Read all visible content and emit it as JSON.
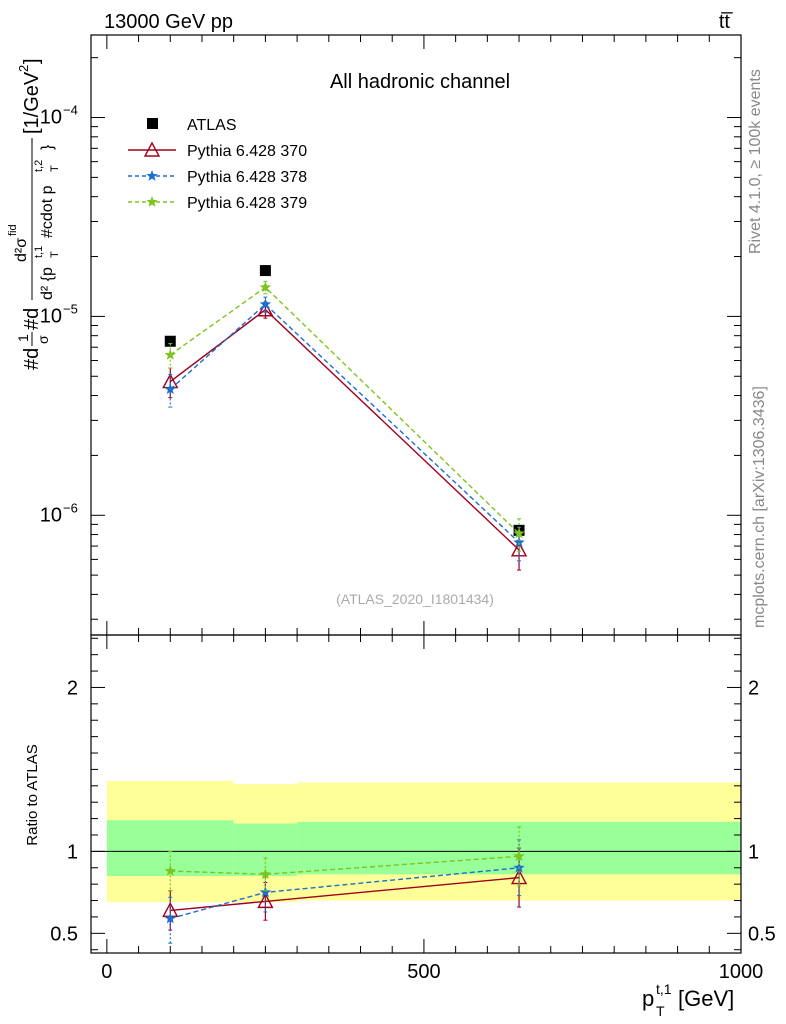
{
  "header": {
    "left": "13000 GeV pp",
    "right": "tt̅"
  },
  "side_labels": {
    "rivet": "Rivet 4.1.0, ≥ 100k events",
    "mcplots": "mcplots.cern.ch [arXiv:1306.3436]"
  },
  "chart_data": [
    {
      "type": "line",
      "panel": "main",
      "title": "All hadronic channel",
      "watermark": "(ATLAS_2020_I1801434)",
      "ylabel": "#d¹/σ#d d²σᶠᶦᵈ / d²{p_T^{t,1} #cdot p_T^{t,2}} [1/GeV²]",
      "ylabel_parts": {
        "prefix": "#d",
        "frac_num": "1",
        "frac_den": "σ",
        "mid": "#d",
        "num": "d²σ",
        "num_sup": "fid",
        "den_a": "d² {p",
        "den_sub": "T",
        "den_sup": "t,1",
        "den_b": "#cdot p",
        "den_sub2": "T",
        "den_sup2": "t,2",
        "den_c": "}",
        "unit": "[1/GeV",
        "unit_sup": "2",
        "unit_end": "]"
      },
      "yscale": "log",
      "ylim": [
        2.5e-07,
        0.00026
      ],
      "xlim": [
        -25,
        1000
      ],
      "yticks": [
        {
          "value": 1e-06,
          "base": "10",
          "exp": "−6"
        },
        {
          "value": 1e-05,
          "base": "10",
          "exp": "−5"
        },
        {
          "value": 0.0001,
          "base": "10",
          "exp": "−4"
        }
      ],
      "legend_position": "top-left",
      "series": [
        {
          "name": "ATLAS",
          "color": "#000000",
          "marker": "square",
          "style": "none",
          "x": [
            100,
            250,
            650
          ],
          "y": [
            7.5e-06,
            1.7e-05,
            8.4e-07
          ]
        },
        {
          "name": "Pythia 6.428 370",
          "color": "#a0001e",
          "marker": "triangle",
          "style": "solid",
          "x": [
            100,
            250,
            650
          ],
          "y": [
            4.7e-06,
            1.08e-05,
            6.7e-07
          ],
          "err_lo": [
            3.9e-06,
            9.8e-06,
            5.3e-07
          ],
          "err_hi": [
            5.5e-06,
            1.18e-05,
            8.1e-07
          ]
        },
        {
          "name": "Pythia 6.428 378",
          "color": "#1a6fd1",
          "marker": "star",
          "style": "dashed",
          "x": [
            100,
            250,
            650
          ],
          "y": [
            4.3e-06,
            1.15e-05,
            7.3e-07
          ],
          "err_lo": [
            3.5e-06,
            1.05e-05,
            5.9e-07
          ],
          "err_hi": [
            5.1e-06,
            1.25e-05,
            8.7e-07
          ]
        },
        {
          "name": "Pythia 6.428 379",
          "color": "#7cc51e",
          "marker": "star",
          "style": "dashed",
          "x": [
            100,
            250,
            650
          ],
          "y": [
            6.4e-06,
            1.4e-05,
            8.1e-07
          ],
          "err_lo": [
            5.5e-06,
            1.3e-05,
            6.6e-07
          ],
          "err_hi": [
            7.3e-06,
            1.5e-05,
            9.6e-07
          ]
        }
      ]
    },
    {
      "type": "line",
      "panel": "ratio",
      "ylabel": "Ratio to ATLAS",
      "xlabel": "p_T^{t,1} [GeV]",
      "xlabel_parts": {
        "main": "p",
        "sub": "T",
        "sup": "t,1",
        "unit": " [GeV]"
      },
      "ylim": [
        0.38,
        2.32
      ],
      "xlim": [
        -25,
        1000
      ],
      "yticks": [
        {
          "value": 0.5,
          "label": "0.5"
        },
        {
          "value": 1,
          "label": "1"
        },
        {
          "value": 2,
          "label": "2"
        }
      ],
      "xticks": [
        {
          "value": 0,
          "label": "0"
        },
        {
          "value": 500,
          "label": "500"
        },
        {
          "value": 1000,
          "label": "1000"
        }
      ],
      "reference_line": 1,
      "bands": {
        "bins": [
          [
            0,
            200
          ],
          [
            200,
            300
          ],
          [
            300,
            1000
          ]
        ],
        "yellow_lo": [
          0.69,
          0.69,
          0.7
        ],
        "yellow_hi": [
          1.43,
          1.41,
          1.42
        ],
        "green_lo": [
          0.85,
          0.85,
          0.86
        ],
        "green_hi": [
          1.19,
          1.17,
          1.18
        ],
        "yellow_color": "#ffff99",
        "green_color": "#99ff99"
      },
      "series": [
        {
          "name": "Pythia 6.428 370",
          "color": "#a0001e",
          "marker": "triangle",
          "style": "solid",
          "x": [
            100,
            250,
            650
          ],
          "y": [
            0.64,
            0.695,
            0.84
          ],
          "err_lo": [
            0.52,
            0.58,
            0.66
          ],
          "err_hi": [
            0.76,
            0.81,
            1.02
          ]
        },
        {
          "name": "Pythia 6.428 378",
          "color": "#1a6fd1",
          "marker": "star",
          "style": "dashed",
          "x": [
            100,
            250,
            650
          ],
          "y": [
            0.59,
            0.75,
            0.9
          ],
          "err_lo": [
            0.44,
            0.63,
            0.73
          ],
          "err_hi": [
            0.72,
            0.87,
            1.07
          ]
        },
        {
          "name": "Pythia 6.428 379",
          "color": "#7cc51e",
          "marker": "star",
          "style": "dashed",
          "x": [
            100,
            250,
            650
          ],
          "y": [
            0.88,
            0.86,
            0.97
          ],
          "err_lo": [
            0.76,
            0.76,
            0.79
          ],
          "err_hi": [
            1.0,
            0.96,
            1.15
          ]
        }
      ]
    }
  ]
}
